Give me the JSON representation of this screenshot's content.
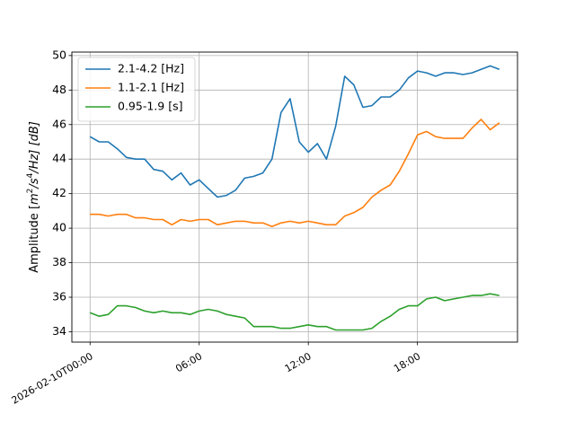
{
  "chart_data": {
    "type": "line",
    "title": "",
    "xlabel": "",
    "ylabel_parts": {
      "before": "Amplitude [",
      "m": "m",
      "m_exp": "2",
      "s": "/s",
      "s_exp": "4",
      "after": "/Hz] [dB]"
    },
    "ylim": [
      33.4,
      50.2
    ],
    "xlim": [
      "2026-02-09T23:00:00",
      "2026-02-10T23:30:00"
    ],
    "grid": true,
    "legend_position": "upper left",
    "yticks": [
      34,
      36,
      38,
      40,
      42,
      44,
      46,
      48,
      50
    ],
    "xticks": [
      {
        "t": "2026-02-10T00:00:00",
        "label": "2026-02-10T00:00"
      },
      {
        "t": "2026-02-10T06:00:00",
        "label": "06:00"
      },
      {
        "t": "2026-02-10T12:00:00",
        "label": "12:00"
      },
      {
        "t": "2026-02-10T18:00:00",
        "label": "18:00"
      }
    ],
    "x": [
      "2026-02-10T00:00:00",
      "2026-02-10T00:30:00",
      "2026-02-10T01:00:00",
      "2026-02-10T01:30:00",
      "2026-02-10T02:00:00",
      "2026-02-10T02:30:00",
      "2026-02-10T03:00:00",
      "2026-02-10T03:30:00",
      "2026-02-10T04:00:00",
      "2026-02-10T04:30:00",
      "2026-02-10T05:00:00",
      "2026-02-10T05:30:00",
      "2026-02-10T06:00:00",
      "2026-02-10T06:30:00",
      "2026-02-10T07:00:00",
      "2026-02-10T07:30:00",
      "2026-02-10T08:00:00",
      "2026-02-10T08:30:00",
      "2026-02-10T09:00:00",
      "2026-02-10T09:30:00",
      "2026-02-10T10:00:00",
      "2026-02-10T10:30:00",
      "2026-02-10T11:00:00",
      "2026-02-10T11:30:00",
      "2026-02-10T12:00:00",
      "2026-02-10T12:30:00",
      "2026-02-10T13:00:00",
      "2026-02-10T13:30:00",
      "2026-02-10T14:00:00",
      "2026-02-10T14:30:00",
      "2026-02-10T15:00:00",
      "2026-02-10T15:30:00",
      "2026-02-10T16:00:00",
      "2026-02-10T16:30:00",
      "2026-02-10T17:00:00",
      "2026-02-10T17:30:00",
      "2026-02-10T18:00:00",
      "2026-02-10T18:30:00",
      "2026-02-10T19:00:00",
      "2026-02-10T19:30:00",
      "2026-02-10T20:00:00",
      "2026-02-10T20:30:00",
      "2026-02-10T21:00:00",
      "2026-02-10T21:30:00",
      "2026-02-10T22:00:00",
      "2026-02-10T22:30:00"
    ],
    "series": [
      {
        "name": "2.1-4.2 [Hz]",
        "color": "#1f77b4",
        "values": [
          45.3,
          45.0,
          45.0,
          44.6,
          44.1,
          44.0,
          44.0,
          43.4,
          43.3,
          42.8,
          43.2,
          42.5,
          42.8,
          42.3,
          41.8,
          41.9,
          42.2,
          42.9,
          43.0,
          43.2,
          44.0,
          46.7,
          47.5,
          45.0,
          44.4,
          44.9,
          44.0,
          45.9,
          48.8,
          48.3,
          47.0,
          47.1,
          47.6,
          47.6,
          48.0,
          48.7,
          49.1,
          49.0,
          48.8,
          49.0,
          49.0,
          48.9,
          49.0,
          49.2,
          49.4,
          49.2
        ]
      },
      {
        "name": "1.1-2.1 [Hz]",
        "color": "#ff7f0e",
        "values": [
          40.8,
          40.8,
          40.7,
          40.8,
          40.8,
          40.6,
          40.6,
          40.5,
          40.5,
          40.2,
          40.5,
          40.4,
          40.5,
          40.5,
          40.2,
          40.3,
          40.4,
          40.4,
          40.3,
          40.3,
          40.1,
          40.3,
          40.4,
          40.3,
          40.4,
          40.3,
          40.2,
          40.2,
          40.7,
          40.9,
          41.2,
          41.8,
          42.2,
          42.5,
          43.3,
          44.3,
          45.4,
          45.6,
          45.3,
          45.2,
          45.2,
          45.2,
          45.8,
          46.3,
          45.7,
          46.1
        ]
      },
      {
        "name": "0.95-1.9 [s]",
        "color": "#2ca02c",
        "values": [
          35.1,
          34.9,
          35.0,
          35.5,
          35.5,
          35.4,
          35.2,
          35.1,
          35.2,
          35.1,
          35.1,
          35.0,
          35.2,
          35.3,
          35.2,
          35.0,
          34.9,
          34.8,
          34.3,
          34.3,
          34.3,
          34.2,
          34.2,
          34.3,
          34.4,
          34.3,
          34.3,
          34.1,
          34.1,
          34.1,
          34.1,
          34.2,
          34.6,
          34.9,
          35.3,
          35.5,
          35.5,
          35.9,
          36.0,
          35.8,
          35.9,
          36.0,
          36.1,
          36.1,
          36.2,
          36.1
        ]
      }
    ]
  }
}
